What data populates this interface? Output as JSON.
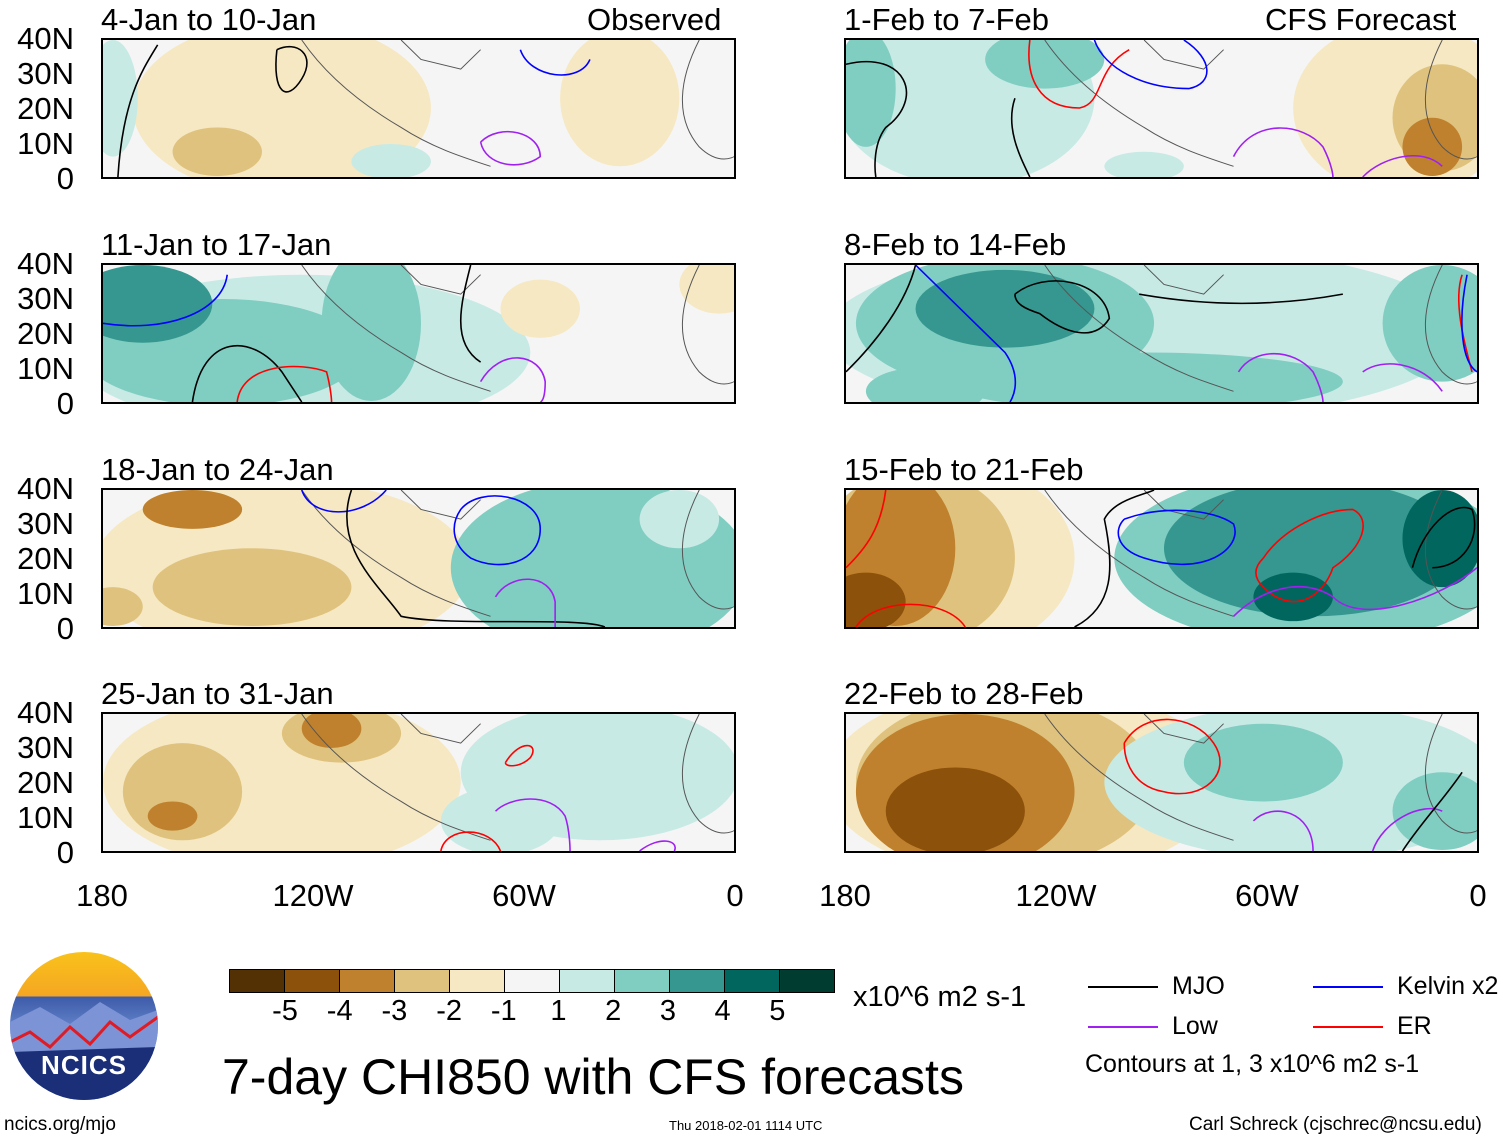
{
  "header": {
    "left_label": "Observed",
    "right_label": "CFS Forecast"
  },
  "panels": [
    {
      "title": "4-Jan to 10-Jan"
    },
    {
      "title": "11-Jan to 17-Jan"
    },
    {
      "title": "18-Jan to 24-Jan"
    },
    {
      "title": "25-Jan to 31-Jan"
    },
    {
      "title": "1-Feb to 7-Feb"
    },
    {
      "title": "8-Feb to 14-Feb"
    },
    {
      "title": "15-Feb to 21-Feb"
    },
    {
      "title": "22-Feb to 28-Feb"
    }
  ],
  "lat_labels": [
    "40N",
    "30N",
    "20N",
    "10N",
    "0"
  ],
  "lon_labels": [
    "180",
    "120W",
    "60W",
    "0"
  ],
  "colorbar": {
    "colors": [
      "#543005",
      "#8c510a",
      "#bf812d",
      "#dfc27d",
      "#f6e8c3",
      "#f5f5f5",
      "#c7eae5",
      "#80cdc1",
      "#35978f",
      "#01665e",
      "#003c30"
    ],
    "labels": [
      "-5",
      "-4",
      "-3",
      "-2",
      "-1",
      "1",
      "2",
      "3",
      "4",
      "5"
    ],
    "units": "x10^6 m2 s-1"
  },
  "legend": {
    "items": [
      {
        "label": "MJO",
        "color": "#000000"
      },
      {
        "label": "Kelvin x2",
        "color": "#0000ff"
      },
      {
        "label": "Low",
        "color": "#a020f0"
      },
      {
        "label": "ER",
        "color": "#ff0000"
      }
    ],
    "note": "Contours at 1, 3 x10^6 m2 s-1"
  },
  "title": "7-day CHI850 with CFS forecasts",
  "logo_text": "NCICS",
  "footer": {
    "url": "ncics.org/mjo",
    "timestamp": "Thu 2018-02-01 1114 UTC",
    "credit": "Carl Schreck (cjschrec@ncsu.edu)"
  }
}
